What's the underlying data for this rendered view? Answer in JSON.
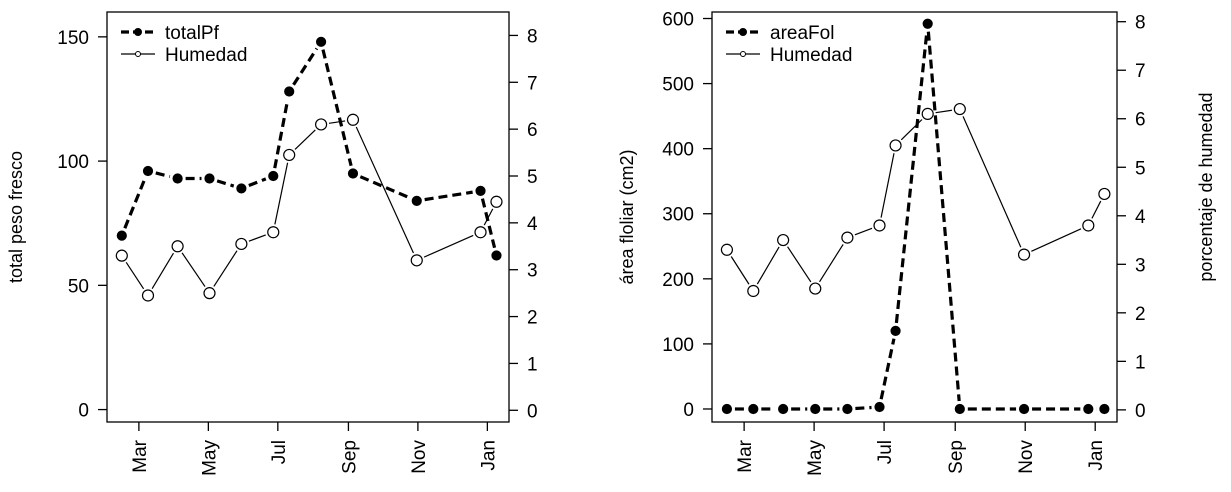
{
  "chart_data": [
    {
      "type": "line",
      "x": [
        "2017-02-14",
        "2017-03-09",
        "2017-04-04",
        "2017-05-02",
        "2017-05-30",
        "2017-06-27",
        "2017-07-11",
        "2017-08-08",
        "2017-09-05",
        "2017-10-31",
        "2017-12-26",
        "2018-01-09"
      ],
      "x_ticks": [
        "Mar",
        "May",
        "Jul",
        "Sep",
        "Nov",
        "Jan"
      ],
      "x_tick_dates": [
        "2017-03-01",
        "2017-05-01",
        "2017-07-01",
        "2017-09-01",
        "2017-11-01",
        "2018-01-01"
      ],
      "xlim": [
        "2017-02-01",
        "2018-01-20"
      ],
      "ylabel_left": "total peso fresco",
      "ylim_left": [
        -5,
        160
      ],
      "yticks_left": [
        0,
        50,
        100,
        150
      ],
      "ylabel_right": "",
      "ylim_right": [
        -0.25,
        8.5
      ],
      "yticks_right": [
        0,
        1,
        2,
        3,
        4,
        5,
        6,
        7,
        8
      ],
      "legend_position": "top-left",
      "series": [
        {
          "name": "totalPf",
          "axis": "left",
          "style": "dashed-filled",
          "values": [
            70,
            96,
            93,
            93,
            89,
            94,
            128,
            148,
            95,
            84,
            88,
            62
          ]
        },
        {
          "name": "Humedad",
          "axis": "right",
          "style": "solid-open",
          "values": [
            3.3,
            2.45,
            3.5,
            2.5,
            3.55,
            3.8,
            5.45,
            6.1,
            6.2,
            3.2,
            3.8,
            4.45
          ]
        }
      ]
    },
    {
      "type": "line",
      "x": [
        "2017-02-14",
        "2017-03-09",
        "2017-04-04",
        "2017-05-02",
        "2017-05-30",
        "2017-06-27",
        "2017-07-11",
        "2017-08-08",
        "2017-09-05",
        "2017-10-31",
        "2017-12-26",
        "2018-01-09"
      ],
      "x_ticks": [
        "Mar",
        "May",
        "Jul",
        "Sep",
        "Nov",
        "Jan"
      ],
      "x_tick_dates": [
        "2017-03-01",
        "2017-05-01",
        "2017-07-01",
        "2017-09-01",
        "2017-11-01",
        "2018-01-01"
      ],
      "xlim": [
        "2017-02-01",
        "2018-01-20"
      ],
      "ylabel_left": "área floliar (cm2)",
      "ylim_left": [
        -20,
        610
      ],
      "yticks_left": [
        0,
        100,
        200,
        300,
        400,
        500,
        600
      ],
      "ylabel_right": "porcentaje de humedad",
      "ylim_right": [
        -0.25,
        8.2
      ],
      "yticks_right": [
        0,
        1,
        2,
        3,
        4,
        5,
        6,
        7,
        8
      ],
      "legend_position": "top-left",
      "series": [
        {
          "name": "areaFol",
          "axis": "left",
          "style": "dashed-filled",
          "values": [
            0,
            0,
            0,
            0,
            0,
            3,
            120,
            592,
            0,
            0,
            0,
            0
          ]
        },
        {
          "name": "Humedad",
          "axis": "right",
          "style": "solid-open",
          "values": [
            3.3,
            2.45,
            3.5,
            2.5,
            3.55,
            3.8,
            5.45,
            6.1,
            6.2,
            3.2,
            3.8,
            4.45
          ]
        }
      ]
    }
  ]
}
